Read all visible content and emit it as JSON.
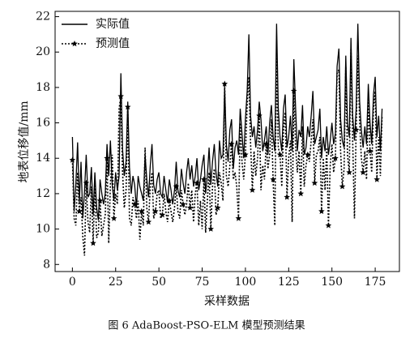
{
  "chart_data": {
    "type": "line",
    "caption": "图 6  AdaBoost-PSO-ELM 模型预测结果",
    "xlabel": "采样数据",
    "ylabel": "地表位移值/mm",
    "xlim": [
      -10,
      189
    ],
    "ylim": [
      7.6,
      22.3
    ],
    "xticks": [
      0,
      25,
      50,
      75,
      100,
      125,
      150,
      175
    ],
    "yticks": [
      8,
      10,
      12,
      14,
      16,
      18,
      20,
      22
    ],
    "legend": "upper-left",
    "x": [
      0,
      1,
      2,
      3,
      4,
      5,
      6,
      7,
      8,
      9,
      10,
      11,
      12,
      13,
      14,
      15,
      16,
      17,
      18,
      19,
      20,
      21,
      22,
      23,
      24,
      25,
      26,
      27,
      28,
      29,
      30,
      31,
      32,
      33,
      34,
      35,
      36,
      37,
      38,
      39,
      40,
      41,
      42,
      43,
      44,
      45,
      46,
      47,
      48,
      49,
      50,
      51,
      52,
      53,
      54,
      55,
      56,
      57,
      58,
      59,
      60,
      61,
      62,
      63,
      64,
      65,
      66,
      67,
      68,
      69,
      70,
      71,
      72,
      73,
      74,
      75,
      76,
      77,
      78,
      79,
      80,
      81,
      82,
      83,
      84,
      85,
      86,
      87,
      88,
      89,
      90,
      91,
      92,
      93,
      94,
      95,
      96,
      97,
      98,
      99,
      100,
      101,
      102,
      103,
      104,
      105,
      106,
      107,
      108,
      109,
      110,
      111,
      112,
      113,
      114,
      115,
      116,
      117,
      118,
      119,
      120,
      121,
      122,
      123,
      124,
      125,
      126,
      127,
      128,
      129,
      130,
      131,
      132,
      133,
      134,
      135,
      136,
      137,
      138,
      139,
      140,
      141,
      142,
      143,
      144,
      145,
      146,
      147,
      148,
      149,
      150,
      151,
      152,
      153,
      154,
      155,
      156,
      157,
      158,
      159,
      160,
      161,
      162,
      163,
      164,
      165,
      166,
      167,
      168,
      169,
      170,
      171,
      172,
      173,
      174,
      175,
      176,
      177,
      178,
      179
    ],
    "series": [
      {
        "name": "实际值",
        "color": "#000000",
        "style": "solid",
        "values": [
          15.2,
          11.0,
          12.5,
          14.9,
          11.5,
          13.8,
          10.6,
          12.1,
          14.2,
          11.8,
          12.0,
          13.5,
          10.8,
          13.2,
          11.2,
          10.5,
          12.8,
          12.0,
          11.4,
          12.0,
          14.8,
          13.0,
          15.0,
          12.5,
          11.6,
          13.2,
          12.2,
          13.0,
          18.8,
          14.5,
          13.0,
          13.8,
          17.2,
          13.5,
          12.0,
          13.0,
          12.5,
          11.2,
          13.0,
          12.4,
          12.0,
          11.6,
          14.2,
          12.8,
          11.8,
          13.6,
          14.8,
          12.5,
          12.0,
          12.8,
          13.2,
          12.0,
          11.8,
          13.0,
          12.2,
          11.5,
          12.8,
          12.2,
          11.4,
          12.2,
          13.8,
          12.2,
          11.8,
          13.4,
          12.6,
          12.0,
          13.2,
          14.0,
          12.8,
          13.6,
          12.4,
          13.0,
          14.0,
          12.2,
          12.8,
          13.6,
          14.2,
          12.0,
          13.0,
          14.6,
          12.5,
          13.8,
          14.8,
          13.2,
          12.4,
          15.0,
          14.0,
          14.2,
          18.0,
          14.8,
          13.8,
          15.6,
          16.2,
          13.4,
          14.6,
          15.0,
          14.2,
          16.8,
          15.4,
          14.0,
          16.2,
          17.8,
          21.0,
          16.4,
          15.2,
          15.8,
          14.6,
          15.6,
          17.2,
          16.2,
          14.4,
          15.0,
          15.8,
          14.2,
          16.0,
          17.0,
          15.2,
          14.4,
          21.6,
          16.8,
          15.2,
          14.4,
          16.8,
          17.6,
          14.6,
          15.2,
          16.4,
          14.4,
          19.6,
          16.8,
          14.4,
          15.6,
          15.2,
          17.0,
          14.2,
          14.6,
          15.8,
          15.2,
          16.4,
          17.8,
          14.8,
          15.2,
          15.6,
          16.8,
          14.0,
          15.2,
          14.4,
          15.8,
          14.2,
          15.0,
          16.0,
          14.8,
          15.4,
          19.2,
          20.2,
          16.2,
          15.0,
          14.6,
          19.8,
          16.0,
          15.2,
          20.8,
          16.4,
          15.0,
          16.8,
          21.6,
          17.2,
          15.6,
          14.6,
          15.8,
          14.8,
          18.2,
          16.0,
          14.8,
          17.6,
          18.6,
          15.2,
          16.4,
          14.4,
          16.8
        ]
      },
      {
        "name": "预测值",
        "color": "#000000",
        "style": "dotted",
        "marker": "star",
        "values": [
          13.9,
          10.6,
          10.2,
          13.2,
          11.0,
          11.8,
          9.6,
          8.5,
          12.6,
          10.4,
          9.8,
          12.4,
          9.2,
          12.6,
          9.5,
          9.8,
          11.6,
          9.6,
          10.2,
          10.8,
          14.0,
          9.2,
          12.6,
          14.2,
          10.6,
          12.0,
          11.4,
          16.8,
          17.5,
          13.2,
          11.2,
          12.2,
          16.9,
          10.6,
          10.2,
          11.8,
          11.4,
          10.6,
          11.6,
          9.4,
          11.0,
          10.2,
          14.6,
          11.2,
          10.4,
          12.4,
          13.2,
          10.6,
          11.0,
          12.0,
          12.2,
          10.6,
          10.8,
          12.0,
          11.0,
          10.4,
          11.6,
          11.0,
          10.4,
          11.2,
          12.4,
          11.0,
          10.6,
          12.2,
          11.4,
          10.8,
          11.4,
          12.6,
          11.2,
          12.2,
          10.4,
          12.0,
          12.6,
          10.2,
          11.6,
          10.0,
          12.8,
          9.8,
          11.6,
          13.2,
          10.0,
          12.4,
          13.4,
          10.8,
          11.2,
          13.2,
          12.6,
          11.6,
          18.2,
          13.0,
          12.4,
          13.6,
          14.8,
          12.8,
          13.2,
          12.4,
          10.6,
          16.0,
          13.8,
          12.8,
          14.2,
          17.0,
          18.6,
          14.8,
          12.2,
          14.4,
          13.0,
          14.0,
          16.4,
          12.2,
          13.6,
          12.8,
          14.8,
          13.4,
          14.2,
          16.2,
          12.8,
          10.2,
          19.8,
          14.6,
          14.2,
          12.4,
          15.6,
          16.6,
          11.8,
          14.0,
          15.0,
          10.4,
          17.8,
          14.6,
          13.2,
          14.4,
          12.0,
          15.8,
          12.4,
          13.6,
          14.2,
          13.8,
          15.0,
          16.2,
          12.6,
          14.2,
          14.4,
          15.2,
          11.0,
          14.0,
          12.2,
          14.6,
          10.2,
          13.6,
          14.8,
          13.2,
          14.0,
          18.8,
          19.0,
          14.4,
          12.4,
          13.4,
          19.2,
          14.2,
          13.2,
          20.2,
          15.0,
          10.6,
          15.6,
          19.8,
          16.0,
          14.0,
          13.2,
          14.4,
          12.8,
          17.4,
          14.4,
          13.2,
          16.8,
          17.8,
          12.8,
          15.2,
          13.0,
          16.4
        ]
      }
    ]
  }
}
